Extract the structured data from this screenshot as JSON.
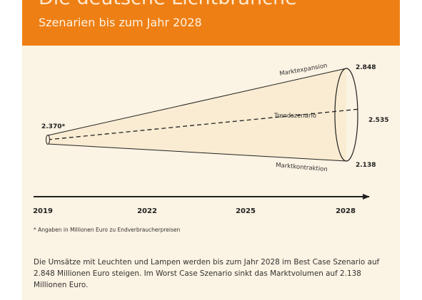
{
  "header": {
    "title": "Die deutsche Lichtbranche",
    "subtitle": "Szenarien bis zum Jahr 2028"
  },
  "chart_data": {
    "type": "line",
    "x": [
      "2019",
      "2028"
    ],
    "series": [
      {
        "name": "Marktexpansion",
        "values": [
          2370,
          2848
        ]
      },
      {
        "name": "Trendszenario",
        "values": [
          2370,
          2535
        ]
      },
      {
        "name": "Marktkontraktion",
        "values": [
          2370,
          2138
        ]
      }
    ],
    "start_label": "2.370*",
    "end_labels": [
      "2.848",
      "2.535",
      "2.138"
    ],
    "x_ticks": [
      "2019",
      "2022",
      "2025",
      "2028"
    ]
  },
  "footnote": "* Angaben in Millionen Euro zu Endverbraucherpreisen",
  "description": "Die Umsätze mit Leuchten und Lampen werden bis zum Jahr 2028 im Best Case Szenario auf 2.848 Millionen Euro steigen. Im Worst Case Szenario sinkt das Marktvolumen auf 2.138 Millionen Euro.",
  "colors": {
    "accent": "#ee7f14",
    "background": "#fbf3e3",
    "ink": "#222222"
  }
}
